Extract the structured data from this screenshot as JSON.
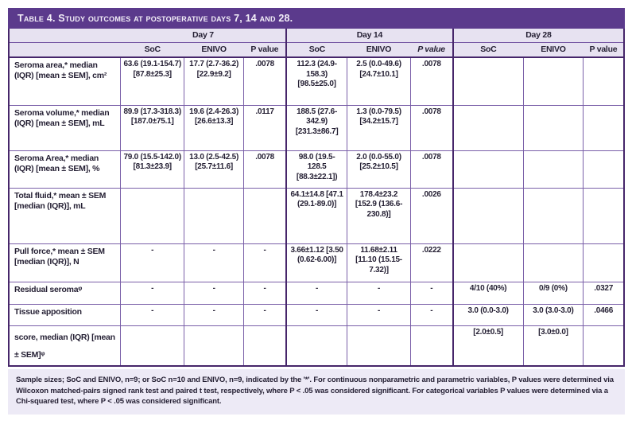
{
  "title": "Table 4. Study outcomes at postoperative days 7, 14 and 28.",
  "colors": {
    "title_band": "#5b3a8c",
    "header_band": "#e7e2f1",
    "grid_line": "#7a5fa8",
    "heavy_line": "#46266a",
    "footnote_bg": "#edeaf6",
    "text": "#241f33"
  },
  "table": {
    "groups": [
      "Day 7",
      "Day 14",
      "Day 28"
    ],
    "columns": [
      "SoC",
      "ENIVO",
      "P value",
      "SoC",
      "ENIVO",
      "P value",
      "SoC",
      "ENIVO",
      "P value"
    ],
    "rows": [
      {
        "label": "Seroma area,* median (IQR) [mean ± SEM], cm²",
        "cells": [
          "63.6 (19.1-154.7) [87.8±25.3]",
          "17.7 (2.7-36.2) [22.9±9.2]",
          ".0078",
          "112.3 (24.9-158.3) [98.5±25.0]",
          "2.5 (0.0-49.6) [24.7±10.1]",
          ".0078",
          "",
          "",
          ""
        ]
      },
      {
        "label": "Seroma volume,* median (IQR) [mean ± SEM], mL",
        "cells": [
          "89.9 (17.3-318.3) [187.0±75.1]",
          "19.6 (2.4-26.3) [26.6±13.3]",
          ".0117",
          "188.5 (27.6-342.9) [231.3±86.7]",
          "1.3 (0.0-79.5) [34.2±15.7]",
          ".0078",
          "",
          "",
          ""
        ]
      },
      {
        "label": "Seroma Area,* median (IQR) [mean ± SEM], %",
        "cells": [
          "79.0 (15.5-142.0) [81.3±23.9]",
          "13.0 (2.5-42.5) [25.7±11.6]",
          ".0078",
          "98.0 (19.5-128.5 [88.3±22.1])",
          "2.0 (0.0-55.0) [25.2±10.5]",
          ".0078",
          "",
          "",
          ""
        ]
      },
      {
        "label": "Total fluid,* mean ± SEM [median (IQR)], mL",
        "cells": [
          "",
          "",
          "",
          "64.1±14.8 [47.1 (29.1-89.0)]",
          "178.4±23.2 [152.9 (136.6-230.8)]",
          ".0026",
          "",
          "",
          ""
        ]
      },
      {
        "label": "Pull force,* mean ± SEM [median (IQR)], N",
        "cells": [
          "-",
          "-",
          "-",
          "3.66±1.12 [3.50 (0.62-6.00)]",
          "11.68±2.11 [11.10 (15.15-7.32)]",
          ".0222",
          "",
          "",
          ""
        ]
      },
      {
        "label": "Residual seromaᵠ",
        "cells": [
          "-",
          "-",
          "-",
          "-",
          "-",
          "-",
          "4/10 (40%)",
          "0/9 (0%)",
          ".0327"
        ]
      },
      {
        "label": "Tissue apposition",
        "cells": [
          "-",
          "-",
          "-",
          "-",
          "-",
          "-",
          "3.0 (0.0-3.0)",
          "3.0 (3.0-3.0)",
          ".0466"
        ]
      },
      {
        "label": "score, median (IQR) [mean ± SEM]ᵠ",
        "cells": [
          "",
          "",
          "",
          "",
          "",
          "",
          "[2.0±0.5]",
          "[3.0±0.0]",
          ""
        ]
      }
    ]
  },
  "footnote": "Sample sizes; SoC and ENIVO, n=9; or SoC n=10 and ENIVO, n=9, indicated by the '*'. For continuous nonparametric and parametric variables, P values were determined via Wilcoxon matched-pairs signed rank test and paired t test, respectively, where P < .05 was considered significant. For categorical variables P values were determined via a Chi-squared test, where P < .05 was considered significant."
}
